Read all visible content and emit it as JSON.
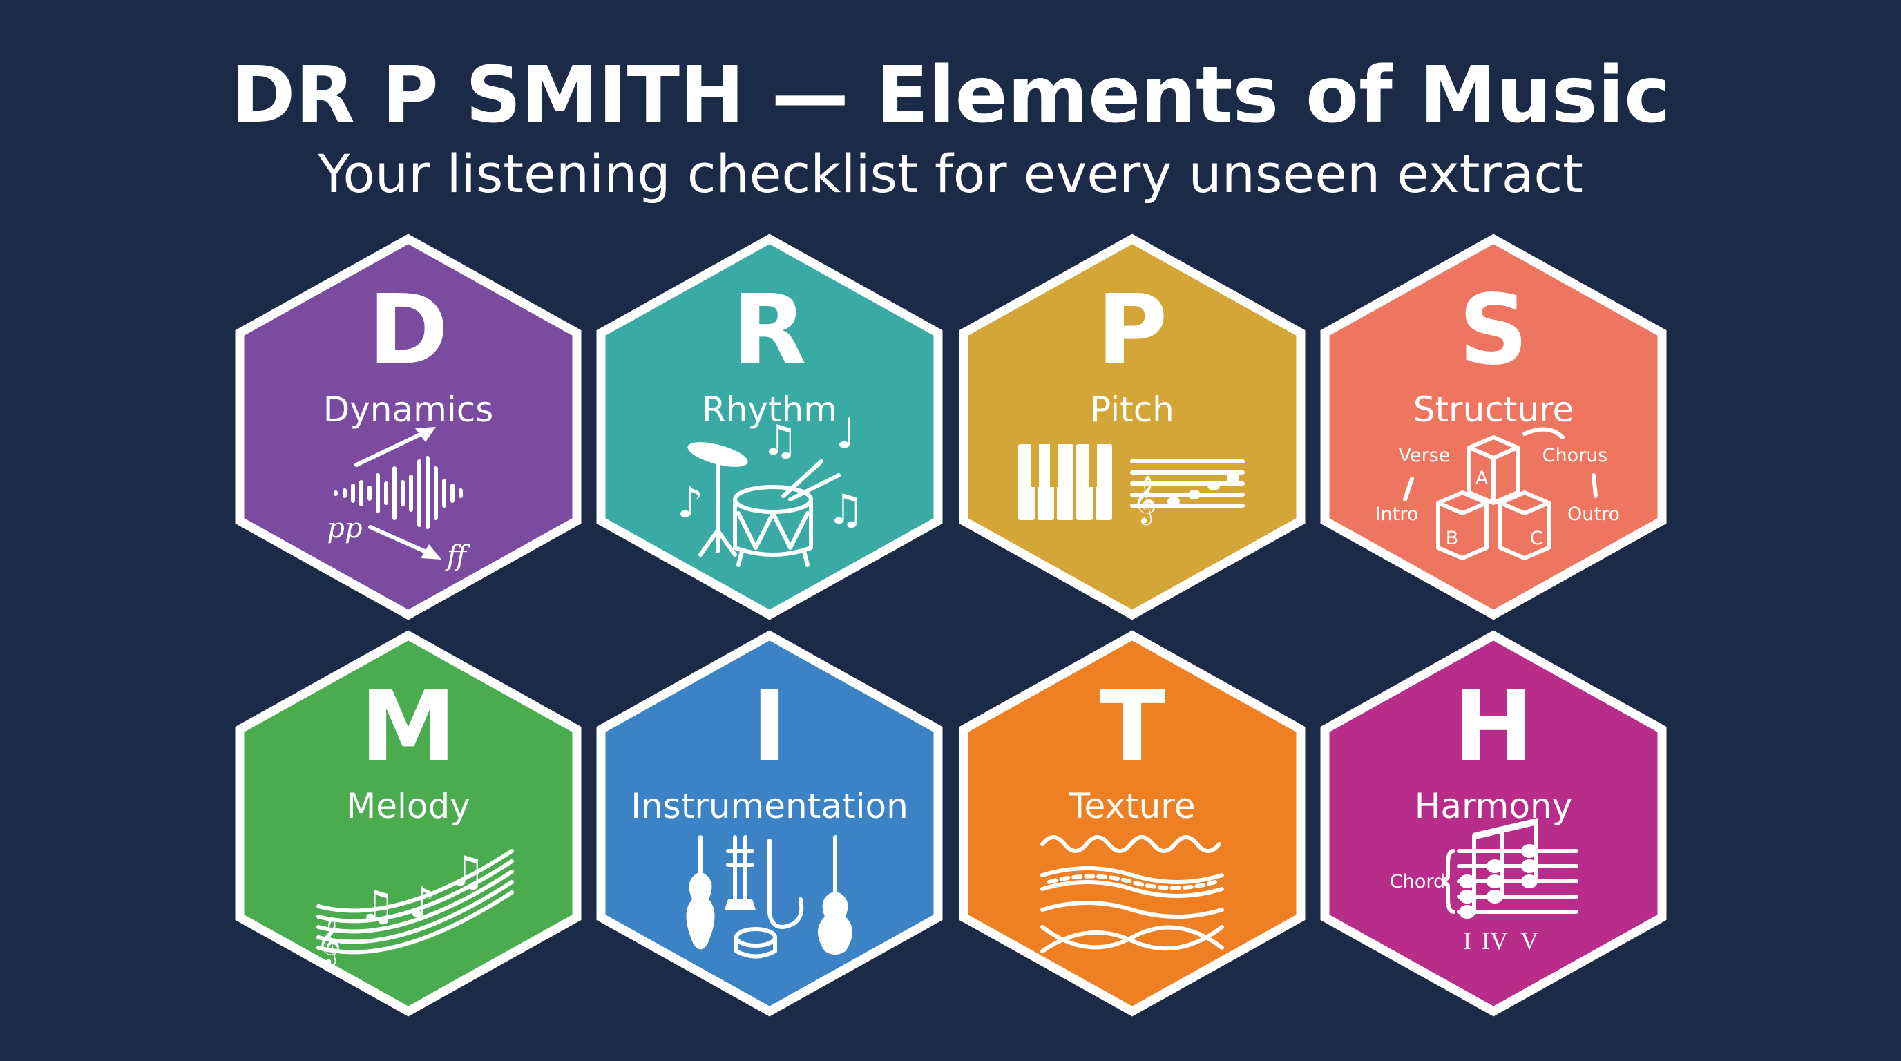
{
  "header": {
    "title": "DR P SMITH — Elements of Music",
    "subtitle": "Your listening checklist for every unseen extract"
  },
  "colors": {
    "background": "#1b2a47",
    "border": "#ffffff"
  },
  "elements": [
    {
      "letter": "D",
      "label": "Dynamics",
      "color": "#7a4b9f",
      "icon": "dynamics-waveform-icon",
      "icon_text": {
        "soft": "pp",
        "loud": "ff"
      }
    },
    {
      "letter": "R",
      "label": "Rhythm",
      "color": "#3aaaa4",
      "icon": "drum-kit-icon"
    },
    {
      "letter": "P",
      "label": "Pitch",
      "color": "#d4a637",
      "icon": "piano-staff-icon"
    },
    {
      "letter": "S",
      "label": "Structure",
      "color": "#ee7661",
      "icon": "structure-blocks-icon",
      "icon_text": {
        "verse": "Verse",
        "chorus": "Chorus",
        "intro": "Intro",
        "outro": "Outro",
        "a": "A",
        "b": "B",
        "c": "C"
      }
    },
    {
      "letter": "M",
      "label": "Melody",
      "color": "#4aab4f",
      "icon": "melody-notes-icon"
    },
    {
      "letter": "I",
      "label": "Instrumentation",
      "color": "#3b83c5",
      "icon": "instruments-icon"
    },
    {
      "letter": "T",
      "label": "Texture",
      "color": "#ef7f23",
      "icon": "texture-waves-icon"
    },
    {
      "letter": "H",
      "label": "Harmony",
      "color": "#b92d8a",
      "icon": "chord-staff-icon",
      "icon_text": {
        "chord": "Chord",
        "i": "I",
        "iv": "IV",
        "v": "V"
      }
    }
  ]
}
